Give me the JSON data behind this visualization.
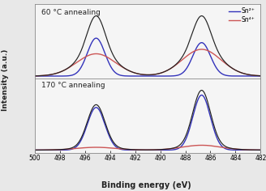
{
  "xlabel": "Binding energy (eV)",
  "ylabel": "Intensity (a.u.)",
  "x_min": 482,
  "x_max": 500,
  "x_ticks": [
    500,
    498,
    496,
    494,
    492,
    490,
    488,
    486,
    484,
    482
  ],
  "panel1_label": "60 °C annealing",
  "panel2_label": "170 °C annealing",
  "legend_sn2": "Sn²⁺",
  "legend_sn4": "Sn⁴⁺",
  "sn2_color": "#3333bb",
  "sn4_color": "#cc5555",
  "envelope_color": "#222222",
  "background_color": "#e8e8e8",
  "panel_bg": "#f5f5f5",
  "c1": 495.1,
  "c2": 486.7,
  "sn2_sigma": 0.7,
  "sn4_sigma": 1.55,
  "p1_sn2_a1": 0.68,
  "p1_sn2_a2": 0.6,
  "p1_sn4_a1": 0.4,
  "p1_sn4_a2": 0.48,
  "p2_sn2_a1": 0.62,
  "p2_sn2_a2": 0.8,
  "p2_sn4_a1": 0.04,
  "p2_sn4_a2": 0.07
}
